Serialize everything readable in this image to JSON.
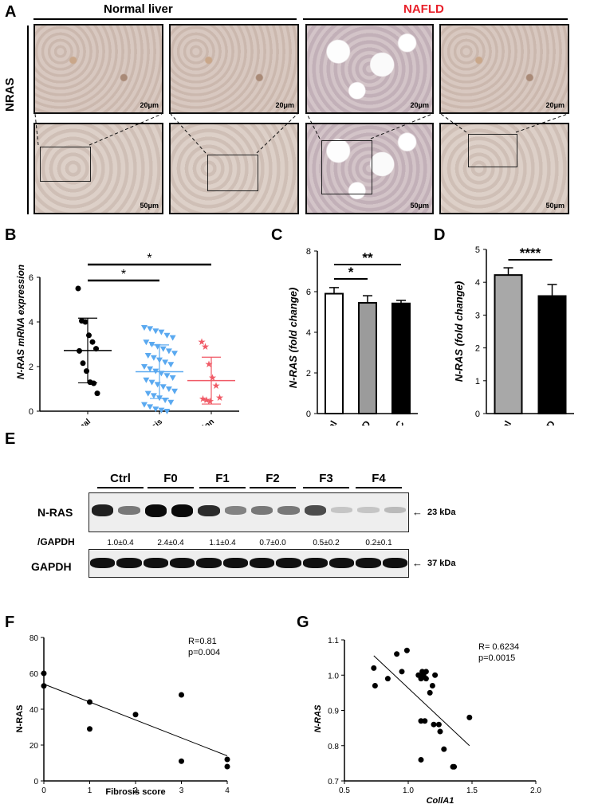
{
  "panels": {
    "A": "A",
    "B": "B",
    "C": "C",
    "D": "D",
    "E": "E",
    "F": "F",
    "G": "G"
  },
  "panelA": {
    "normal_label": "Normal liver",
    "nafld_label": "NAFLD",
    "nafld_color": "#e8202a",
    "row_label": "NRAS",
    "scale_top": "20μm",
    "scale_bottom": "50μm"
  },
  "chart_data": [
    {
      "panel": "B",
      "type": "scatter",
      "categories": [
        "Normal",
        "Steatosis",
        "Inflammation"
      ],
      "ylabel": "N-RAS mRNA expression",
      "ylim": [
        0,
        6
      ],
      "yticks": [
        0,
        2,
        4,
        6
      ],
      "colors": [
        "#000000",
        "#5aa9f0",
        "#f05a66"
      ],
      "markers": [
        "circle",
        "triangle-down",
        "star"
      ],
      "means": [
        2.72,
        1.77,
        1.37
      ],
      "sd": [
        1.45,
        1.2,
        1.05
      ],
      "points": [
        [
          5.5,
          4.05,
          4.0,
          3.4,
          3.1,
          2.8,
          2.7,
          2.15,
          1.8,
          1.3,
          1.25,
          0.8
        ],
        [
          3.75,
          3.7,
          3.6,
          3.55,
          3.4,
          3.3,
          3.1,
          3.0,
          2.9,
          2.8,
          2.7,
          2.6,
          2.5,
          2.4,
          2.3,
          2.2,
          2.1,
          2.0,
          1.9,
          1.8,
          1.7,
          1.6,
          1.5,
          1.4,
          1.3,
          1.2,
          1.1,
          1.0,
          0.9,
          0.8,
          0.7,
          0.6,
          0.5,
          0.4,
          0.3,
          0.2,
          0.1,
          0.05,
          0.0
        ],
        [
          3.1,
          2.9,
          2.1,
          1.5,
          1.15,
          0.6,
          0.55,
          0.5,
          0.45
        ]
      ],
      "significance": [
        {
          "from": "Normal",
          "to": "Steatosis",
          "label": "*"
        },
        {
          "from": "Normal",
          "to": "Inflammation",
          "label": "*"
        }
      ]
    },
    {
      "panel": "C",
      "type": "bar",
      "categories": [
        "Normal",
        "eCLD",
        "CC"
      ],
      "values": [
        5.9,
        5.45,
        5.42
      ],
      "errors": [
        0.3,
        0.35,
        0.15
      ],
      "colors": [
        "#ffffff",
        "#9b9b9b",
        "#000000"
      ],
      "ylabel": "N-RAS (fold change)",
      "ylim": [
        0,
        8
      ],
      "yticks": [
        0,
        2,
        4,
        6,
        8
      ],
      "significance": [
        {
          "from": "Normal",
          "to": "eCLD",
          "label": "*"
        },
        {
          "from": "Normal",
          "to": "CC",
          "label": "**"
        }
      ]
    },
    {
      "panel": "D",
      "type": "bar",
      "categories": [
        "Normal",
        "ACLD"
      ],
      "values": [
        4.22,
        3.58
      ],
      "errors": [
        0.22,
        0.35
      ],
      "colors": [
        "#a8a8a8",
        "#000000"
      ],
      "ylabel": "N-RAS (fold change)",
      "ylim": [
        0,
        5
      ],
      "yticks": [
        0,
        1,
        2,
        3,
        4,
        5
      ],
      "significance": [
        {
          "from": "Normal",
          "to": "ACLD",
          "label": "****"
        }
      ]
    },
    {
      "panel": "F",
      "type": "scatter",
      "x": [
        0,
        0,
        1,
        1,
        2,
        3,
        3,
        4,
        4
      ],
      "y": [
        60,
        53,
        44,
        29,
        37,
        48,
        11,
        12,
        8
      ],
      "fit": {
        "x": [
          0,
          4
        ],
        "y": [
          54,
          14
        ]
      },
      "xlabel": "Fibrosis score",
      "ylabel": "N-RAS",
      "xlim": [
        0,
        4
      ],
      "ylim": [
        0,
        80
      ],
      "xticks": [
        0,
        1,
        2,
        3,
        4
      ],
      "yticks": [
        0,
        20,
        40,
        60,
        80
      ],
      "annotations": [
        "R=0.81",
        "p=0.004"
      ]
    },
    {
      "panel": "G",
      "type": "scatter",
      "x": [
        0.73,
        0.74,
        0.84,
        0.91,
        0.95,
        0.99,
        1.08,
        1.1,
        1.11,
        1.12,
        1.14,
        1.14,
        1.17,
        1.19,
        1.21,
        1.1,
        1.13,
        1.2,
        1.24,
        1.25,
        1.28,
        1.1,
        1.35,
        1.36,
        1.48
      ],
      "y": [
        1.02,
        0.97,
        0.99,
        1.06,
        1.01,
        1.07,
        1.0,
        0.99,
        1.01,
        1.0,
        1.01,
        0.99,
        0.95,
        0.97,
        1.0,
        0.87,
        0.87,
        0.86,
        0.86,
        0.84,
        0.79,
        0.76,
        0.74,
        0.74,
        0.88
      ],
      "fit": {
        "x": [
          0.73,
          1.48
        ],
        "y": [
          1.055,
          0.8
        ]
      },
      "xlabel": "CollA1",
      "ylabel": "N-RAS",
      "xlim": [
        0.5,
        2.0
      ],
      "ylim": [
        0.7,
        1.1
      ],
      "xticks": [
        "0.5",
        "1.0",
        "1.5",
        "2.0"
      ],
      "yticks": [
        "0.7",
        "0.8",
        "0.9",
        "1.0",
        "1.1"
      ],
      "annotations": [
        "R= 0.6234",
        "p=0.0015"
      ]
    }
  ],
  "panelE": {
    "lanes": [
      "Ctrl",
      "F0",
      "F1",
      "F2",
      "F3",
      "F4"
    ],
    "row1_label": "N-RAS",
    "ratio_label": "/GAPDH",
    "row2_label": "GAPDH",
    "ratios": [
      "1.0±0.4",
      "2.4±0.4",
      "1.1±0.4",
      "0.7±0.0",
      "0.5±0.2",
      "0.2±0.1"
    ],
    "marker1": "23 kDa",
    "marker2": "37 kDa",
    "nras_intensity": [
      0.9,
      0.5,
      1.0,
      1.0,
      0.85,
      0.45,
      0.5,
      0.5,
      0.7,
      0.15,
      0.15,
      0.2
    ],
    "gapdh_intensity": [
      1,
      1,
      1,
      1,
      1,
      1,
      1,
      1,
      1,
      1,
      1,
      1
    ]
  }
}
